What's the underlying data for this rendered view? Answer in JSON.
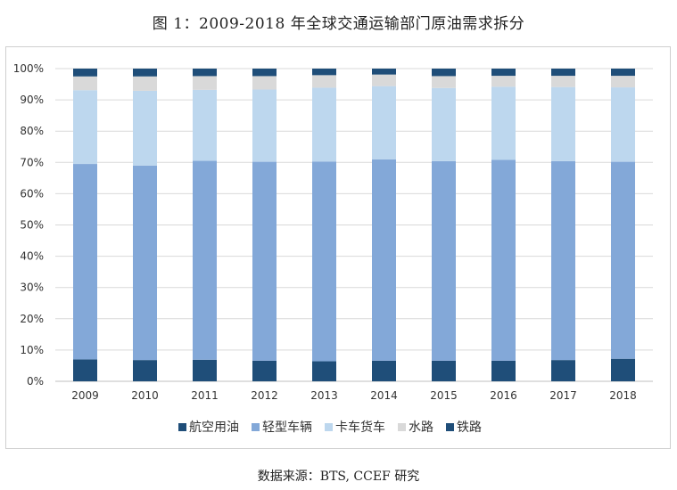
{
  "title": "图 1：2009-2018 年全球交通运输部门原油需求拆分",
  "source": "数据来源：BTS, CCEF 研究",
  "chart_data": {
    "type": "bar",
    "stacked": true,
    "percent_stacked": true,
    "categories": [
      "2009",
      "2010",
      "2011",
      "2012",
      "2013",
      "2014",
      "2015",
      "2016",
      "2017",
      "2018"
    ],
    "ylim": [
      0,
      100
    ],
    "yticks": [
      "0%",
      "10%",
      "20%",
      "30%",
      "40%",
      "50%",
      "60%",
      "70%",
      "80%",
      "90%",
      "100%"
    ],
    "grid": true,
    "legend_position": "bottom",
    "series": [
      {
        "name": "航空用油",
        "color": "#1f4e79",
        "values": [
          7.0,
          6.8,
          6.9,
          6.6,
          6.4,
          6.6,
          6.6,
          6.6,
          6.8,
          7.2
        ]
      },
      {
        "name": "轻型车辆",
        "color": "#83a8d8",
        "values": [
          62.5,
          62.2,
          63.6,
          63.6,
          63.9,
          64.4,
          63.8,
          64.2,
          63.6,
          63.0
        ]
      },
      {
        "name": "卡车货车",
        "color": "#bdd7ee",
        "values": [
          23.6,
          23.9,
          22.7,
          23.1,
          23.6,
          23.4,
          23.4,
          23.4,
          23.7,
          23.8
        ]
      },
      {
        "name": "水路",
        "color": "#d9d9d9",
        "values": [
          4.4,
          4.6,
          4.4,
          4.3,
          4.0,
          3.7,
          3.8,
          3.5,
          3.6,
          3.7
        ]
      },
      {
        "name": "铁路",
        "color": "#1f4e79",
        "values": [
          2.5,
          2.5,
          2.4,
          2.4,
          2.1,
          1.9,
          2.4,
          2.3,
          2.3,
          2.3
        ]
      }
    ]
  }
}
